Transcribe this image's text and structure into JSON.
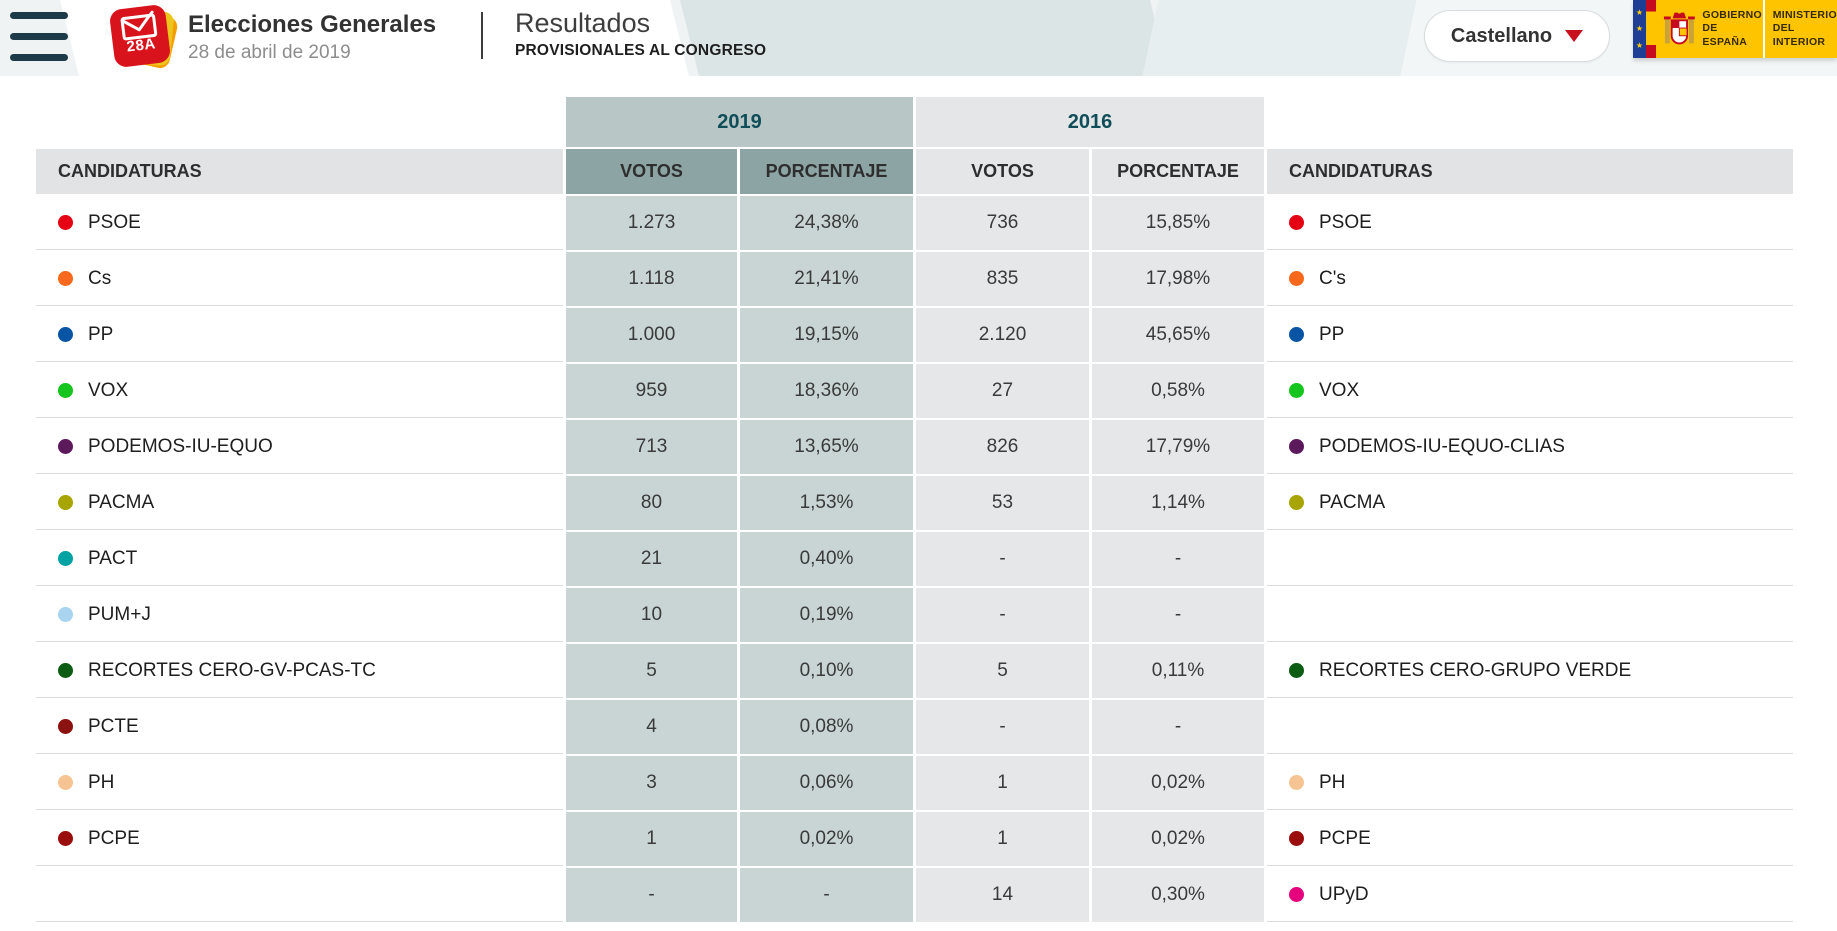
{
  "header": {
    "title": "Elecciones Generales",
    "date": "28 de abril de 2019",
    "logo_label": "28A",
    "section_title": "Resultados",
    "section_subtitle": "PROVISIONALES AL CONGRESO",
    "language": {
      "selected": "Castellano"
    },
    "government": {
      "name_line1": "GOBIERNO",
      "name_line2": "DE ESPAÑA",
      "ministry_line1": "MINISTERIO",
      "ministry_line2": "DEL INTERIOR"
    }
  },
  "icons": {
    "menu": "hamburger",
    "language_caret": "triangle-down",
    "logo": "envelope-check",
    "government": "spain-coat-of-arms"
  },
  "theme": {
    "accent_dark_teal": "#0f4e58",
    "header_2019_group_bg": "#b9c6c6",
    "header_2019_cols_bg": "#8da4a4",
    "cells_2019_bg": "#c9d4d4",
    "cells_2016_bg": "#e6e7e9",
    "candidatures_header_bg": "#e2e3e5",
    "menu_icon_color": "#1d3a49",
    "caret_red": "#c8101e",
    "gov_yellow": "#ffc400",
    "gov_blue": "#1d3e94"
  },
  "table": {
    "group_2019": "2019",
    "group_2016": "2016",
    "col_candidatures": "CANDIDATURAS",
    "col_votes": "VOTOS",
    "col_percentage": "PORCENTAJE",
    "rows": [
      {
        "name_2019": "PSOE",
        "color_2019": "#e60013",
        "votes_2019": "1.273",
        "pct_2019": "24,38%",
        "votes_2016": "736",
        "pct_2016": "15,85%",
        "name_2016": "PSOE",
        "color_2016": "#e60013"
      },
      {
        "name_2019": "Cs",
        "color_2019": "#f8691d",
        "votes_2019": "1.118",
        "pct_2019": "21,41%",
        "votes_2016": "835",
        "pct_2016": "17,98%",
        "name_2016": "C's",
        "color_2016": "#f8691d"
      },
      {
        "name_2019": "PP",
        "color_2019": "#0a54a5",
        "votes_2019": "1.000",
        "pct_2019": "19,15%",
        "votes_2016": "2.120",
        "pct_2016": "45,65%",
        "name_2016": "PP",
        "color_2016": "#0a54a5"
      },
      {
        "name_2019": "VOX",
        "color_2019": "#15c41d",
        "votes_2019": "959",
        "pct_2019": "18,36%",
        "votes_2016": "27",
        "pct_2016": "0,58%",
        "name_2016": "VOX",
        "color_2016": "#15c41d"
      },
      {
        "name_2019": "PODEMOS-IU-EQUO",
        "color_2019": "#5c1a5c",
        "votes_2019": "713",
        "pct_2019": "13,65%",
        "votes_2016": "826",
        "pct_2016": "17,79%",
        "name_2016": "PODEMOS-IU-EQUO-CLIAS",
        "color_2016": "#5c1a5c"
      },
      {
        "name_2019": "PACMA",
        "color_2019": "#a8a400",
        "votes_2019": "80",
        "pct_2019": "1,53%",
        "votes_2016": "53",
        "pct_2016": "1,14%",
        "name_2016": "PACMA",
        "color_2016": "#a8a400"
      },
      {
        "name_2019": "PACT",
        "color_2019": "#00a3a3",
        "votes_2019": "21",
        "pct_2019": "0,40%",
        "votes_2016": "-",
        "pct_2016": "-",
        "name_2016": null,
        "color_2016": null
      },
      {
        "name_2019": "PUM+J",
        "color_2019": "#a8d4ef",
        "votes_2019": "10",
        "pct_2019": "0,19%",
        "votes_2016": "-",
        "pct_2016": "-",
        "name_2016": null,
        "color_2016": null
      },
      {
        "name_2019": "RECORTES CERO-GV-PCAS-TC",
        "color_2019": "#0c5c14",
        "votes_2019": "5",
        "pct_2019": "0,10%",
        "votes_2016": "5",
        "pct_2016": "0,11%",
        "name_2016": "RECORTES CERO-GRUPO VERDE",
        "color_2016": "#0c5c14"
      },
      {
        "name_2019": "PCTE",
        "color_2019": "#8c1111",
        "votes_2019": "4",
        "pct_2019": "0,08%",
        "votes_2016": "-",
        "pct_2016": "-",
        "name_2016": null,
        "color_2016": null
      },
      {
        "name_2019": "PH",
        "color_2019": "#f6c493",
        "votes_2019": "3",
        "pct_2019": "0,06%",
        "votes_2016": "1",
        "pct_2016": "0,02%",
        "name_2016": "PH",
        "color_2016": "#f6c493"
      },
      {
        "name_2019": "PCPE",
        "color_2019": "#9b0e0e",
        "votes_2019": "1",
        "pct_2019": "0,02%",
        "votes_2016": "1",
        "pct_2016": "0,02%",
        "name_2016": "PCPE",
        "color_2016": "#9b0e0e"
      },
      {
        "name_2019": null,
        "color_2019": null,
        "votes_2019": "-",
        "pct_2019": "-",
        "votes_2016": "14",
        "pct_2016": "0,30%",
        "name_2016": "UPyD",
        "color_2016": "#e6007e"
      }
    ]
  }
}
